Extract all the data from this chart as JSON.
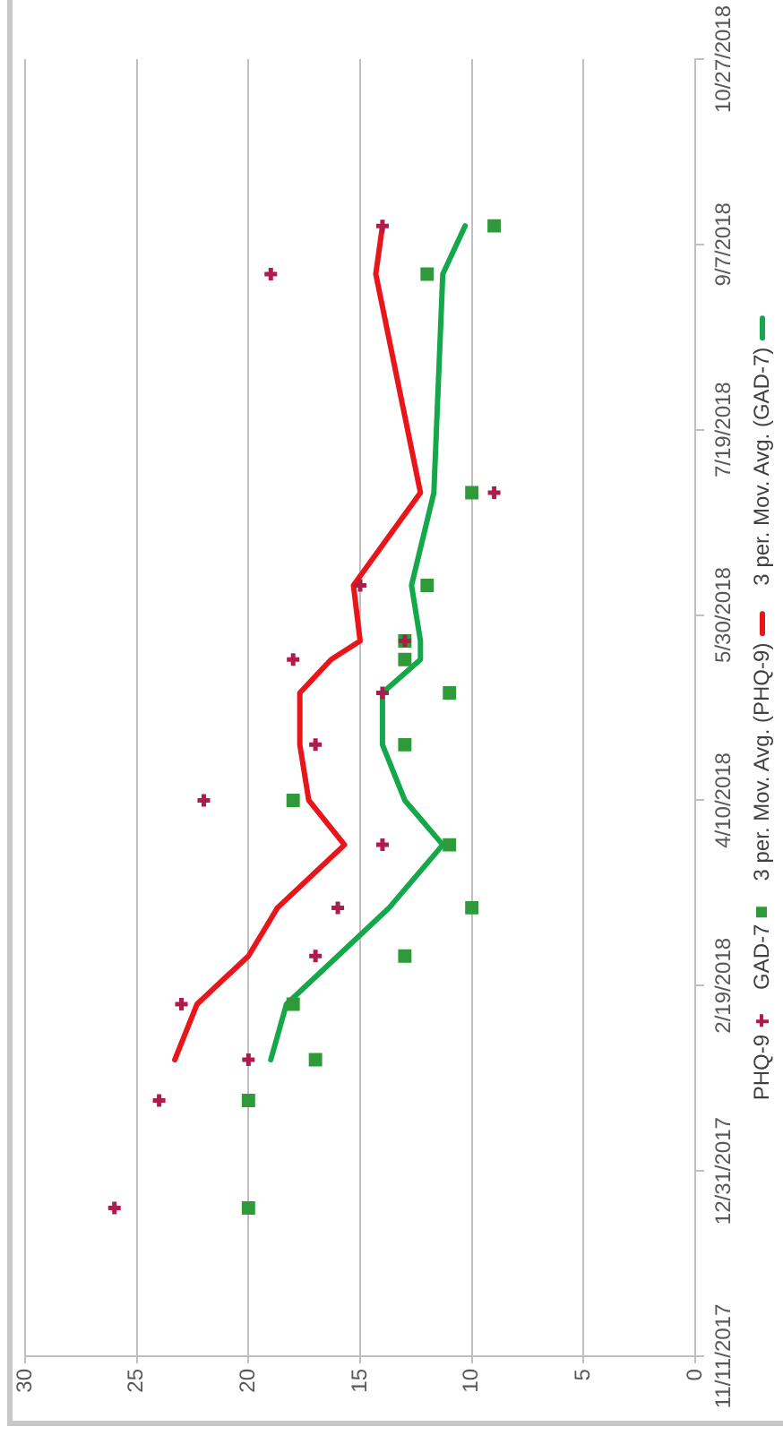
{
  "chart_data": {
    "type": "scatter",
    "x": [
      "2017-12-21",
      "2018-01-19",
      "2018-01-30",
      "2018-02-14",
      "2018-02-27",
      "2018-03-12",
      "2018-03-29",
      "2018-04-10",
      "2018-04-25",
      "2018-05-09",
      "2018-05-18",
      "2018-05-23",
      "2018-06-07",
      "2018-07-02",
      "2018-08-30",
      "2018-09-12"
    ],
    "series": [
      {
        "name": "PHQ-9",
        "marker": "cross",
        "color": "#b01c4a",
        "values": [
          26,
          24,
          20,
          23,
          17,
          16,
          14,
          22,
          17,
          14,
          18,
          13,
          15,
          9,
          19,
          14
        ]
      },
      {
        "name": "GAD-7",
        "marker": "square",
        "color": "#2e9a3a",
        "values": [
          20,
          20,
          17,
          18,
          13,
          10,
          11,
          18,
          13,
          11,
          13,
          13,
          12,
          10,
          12,
          9
        ]
      },
      {
        "name": "3 per. Mov. Avg. (PHQ-9)",
        "type": "line",
        "marker": "none",
        "color": "#e8161b",
        "values": [
          null,
          null,
          23.3,
          22.3,
          20,
          18.7,
          15.7,
          17.3,
          17.7,
          17.7,
          16.3,
          15,
          15.3,
          12.3,
          14.3,
          14
        ]
      },
      {
        "name": "3 per. Mov. Avg. (GAD-7)",
        "type": "line",
        "marker": "none",
        "color": "#14a84a",
        "values": [
          null,
          null,
          19,
          18.3,
          16,
          13.7,
          11.3,
          13,
          14,
          14,
          12.3,
          12.3,
          12.7,
          11.7,
          11.3,
          10.3
        ]
      }
    ],
    "orientation": "horizontal",
    "ylim": [
      "2017-11-11",
      "2018-10-27"
    ],
    "yticks": [
      {
        "value": "2017-11-11",
        "label": "11/11/2017"
      },
      {
        "value": "2017-12-31",
        "label": "12/31/2017"
      },
      {
        "value": "2018-02-19",
        "label": "2/19/2018"
      },
      {
        "value": "2018-04-10",
        "label": "4/10/2018"
      },
      {
        "value": "2018-05-30",
        "label": "5/30/2018"
      },
      {
        "value": "2018-07-19",
        "label": "7/19/2018"
      },
      {
        "value": "2018-09-07",
        "label": "9/7/2018"
      },
      {
        "value": "2018-10-27",
        "label": "10/27/2018"
      }
    ],
    "xlim": [
      30,
      0
    ],
    "xticks": [
      30,
      25,
      20,
      15,
      10,
      5,
      0
    ],
    "grid": "x",
    "legend": "right"
  }
}
